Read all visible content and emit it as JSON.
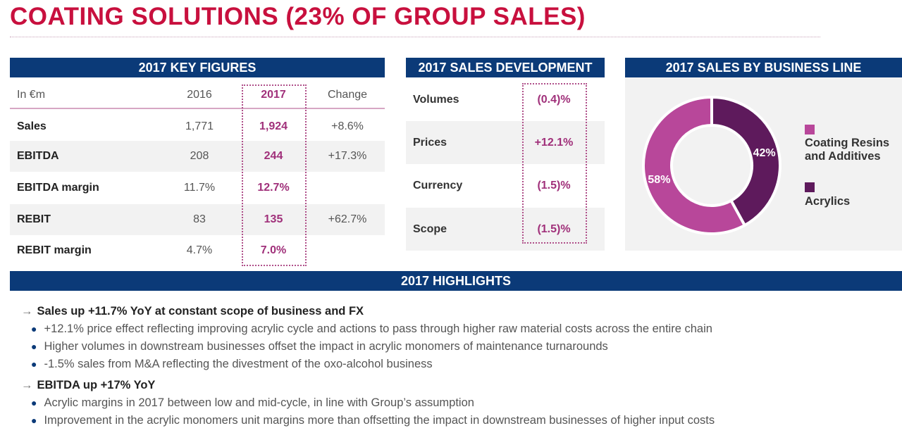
{
  "title": "COATING SOLUTIONS (23% OF GROUP SALES)",
  "key_figures": {
    "header": "2017 KEY FIGURES",
    "columns": [
      "In €m",
      "2016",
      "2017",
      "Change"
    ],
    "rows": [
      {
        "label": "Sales",
        "y2016": "1,771",
        "y2017": "1,924",
        "change": "+8.6%"
      },
      {
        "label": "EBITDA",
        "y2016": "208",
        "y2017": "244",
        "change": "+17.3%"
      },
      {
        "label": "EBITDA margin",
        "y2016": "11.7%",
        "y2017": "12.7%",
        "change": ""
      },
      {
        "label": "REBIT",
        "y2016": "83",
        "y2017": "135",
        "change": "+62.7%"
      },
      {
        "label": "REBIT margin",
        "y2016": "4.7%",
        "y2017": "7.0%",
        "change": ""
      }
    ]
  },
  "sales_development": {
    "header": "2017 SALES DEVELOPMENT",
    "rows": [
      {
        "label": "Volumes",
        "value": "(0.4)%"
      },
      {
        "label": "Prices",
        "value": "+12.1%"
      },
      {
        "label": "Currency",
        "value": "(1.5)%"
      },
      {
        "label": "Scope",
        "value": "(1.5)%"
      }
    ]
  },
  "business_line": {
    "header": "2017 SALES BY BUSINESS LINE"
  },
  "chart_data": {
    "type": "pie",
    "title": "2017 SALES BY BUSINESS LINE",
    "categories": [
      "Acrylics",
      "Coating Resins and Additives"
    ],
    "values": [
      42,
      58
    ],
    "labels": [
      "42%",
      "58%"
    ],
    "colors": [
      "#5e1a5c",
      "#b8479a"
    ],
    "legend": [
      {
        "label": "Coating Resins and Additives",
        "color": "#b8479a"
      },
      {
        "label": "Acrylics",
        "color": "#5e1a5c"
      }
    ],
    "legend_position": "right"
  },
  "highlights": {
    "header": "2017 HIGHLIGHTS",
    "sections": [
      {
        "title": "Sales up +11.7% YoY at constant scope of business and FX",
        "bullets": [
          "+12.1% price effect reflecting improving acrylic cycle and actions to pass through higher raw material costs across the entire chain",
          "Higher volumes in downstream businesses offset the impact in acrylic monomers of maintenance turnarounds",
          "-1.5% sales from M&A reflecting the divestment of the oxo-alcohol business"
        ]
      },
      {
        "title": "EBITDA up +17% YoY",
        "bullets": [
          "Acrylic margins in 2017 between low and mid-cycle, in line with Group’s assumption",
          "Improvement in the acrylic monomers unit margins more than offsetting the impact in downstream businesses of higher input costs"
        ]
      }
    ]
  }
}
